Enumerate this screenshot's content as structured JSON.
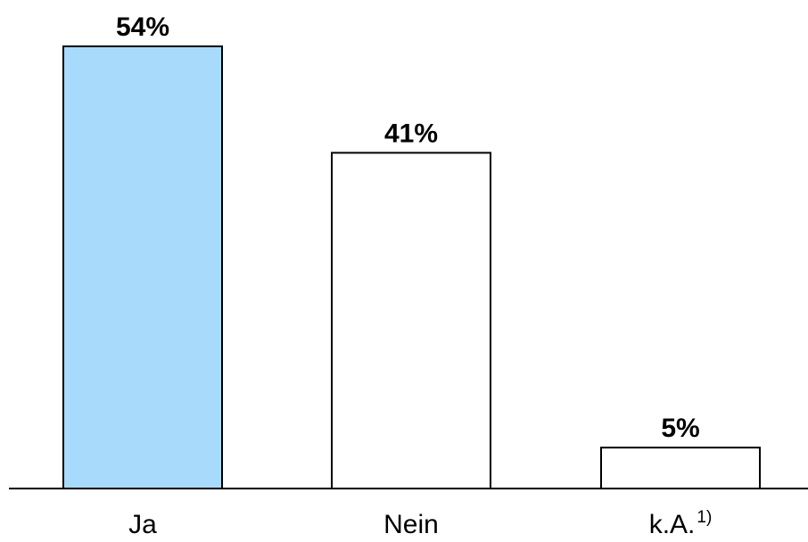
{
  "chart_data": {
    "type": "bar",
    "categories": [
      "Ja",
      "Nein",
      "k.A."
    ],
    "category_footnotes": [
      "",
      "",
      "1)"
    ],
    "values": [
      54,
      41,
      5
    ],
    "value_labels": [
      "54%",
      "41%",
      "5%"
    ],
    "bar_colors": [
      "#a8dbfb",
      "#ffffff",
      "#ffffff"
    ],
    "ylim": [
      0,
      54
    ],
    "grid": false,
    "legend": "none"
  }
}
